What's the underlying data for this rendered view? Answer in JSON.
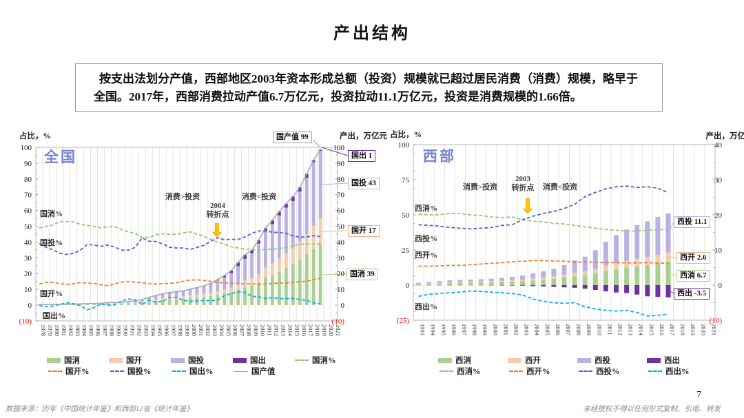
{
  "page": {
    "title": "产出结构",
    "page_number": "7",
    "footer_left": "数据来源：历年《中国统计年鉴》和西部12省《统计年鉴》",
    "footer_right": "未经授权不得以任何形式复制、引用、转发"
  },
  "summary_box": {
    "text": "按支出法划分产值，西部地区2003年资本形成总额（投资）规模就已超过居民消费（消费）规模，略早于全国。2017年，西部消费拉动产值6.7万亿元，投资拉动11.1万亿元，投资是消费规模的1.66倍。"
  },
  "colors": {
    "bar_consumption": "#a9d08e",
    "bar_government": "#f8cbad",
    "bar_investment": "#b9b0e4",
    "bar_net_export": "#7030a0",
    "line_consumption_pct": "#8ec96a",
    "line_government_pct": "#ed7d31",
    "line_investment_pct": "#5a62c9",
    "line_net_export_pct": "#00b0f0",
    "line_total": "#a6a6a6",
    "negative_tick_red": "#ff0000",
    "turning_arrow_yellow": "#ffc000",
    "chart_title_blue": "#7381d9"
  },
  "chart_data": [
    {
      "type": "bar+line combo (stacked bars = output in trillion yuan, dashed lines = share of output %)",
      "title": "全国",
      "left_axis": {
        "label": "占比，%",
        "ticks": [
          "100",
          "90",
          "80",
          "70",
          "60",
          "50",
          "40",
          "30",
          "20",
          "10",
          "0",
          "(10)"
        ],
        "tick_values": [
          100,
          90,
          80,
          70,
          60,
          50,
          40,
          30,
          20,
          10,
          0,
          -10
        ],
        "min": -10,
        "max": 100
      },
      "right_axis": {
        "label": "产出，万亿元",
        "ticks": [
          "100",
          "90",
          "80",
          "70",
          "60",
          "50",
          "40",
          "30",
          "20",
          "10",
          "0",
          "(10)"
        ],
        "tick_values": [
          100,
          90,
          80,
          70,
          60,
          50,
          40,
          30,
          20,
          10,
          0,
          -10
        ],
        "min": -10,
        "max": 100
      },
      "years": [
        1978,
        1979,
        1980,
        1981,
        1982,
        1983,
        1984,
        1985,
        1986,
        1987,
        1988,
        1989,
        1990,
        1991,
        1992,
        1993,
        1994,
        1995,
        1996,
        1997,
        1998,
        1999,
        2000,
        2001,
        2002,
        2003,
        2004,
        2005,
        2006,
        2007,
        2008,
        2009,
        2010,
        2011,
        2012,
        2013,
        2014,
        2015,
        2016,
        2017,
        2018,
        2019,
        2020,
        2021
      ],
      "line_labels": [
        "国消%",
        "国投%",
        "国开%",
        "国出%"
      ],
      "annotations": {
        "left_region": "消费>投资",
        "turning_point_year": "2004",
        "turning_point_label": "转折点",
        "right_region": "消费<投资"
      },
      "callouts": [
        "国产值 99",
        "国出 1",
        "国投 43",
        "国开 17",
        "国消 39"
      ],
      "bar_note": "bar segment (万亿元) = total_line value × share% / 100; data 1978–2019",
      "series": {
        "bars": [
          {
            "name": "国消",
            "color": "#a9d08e"
          },
          {
            "name": "国开",
            "color": "#f8cbad"
          },
          {
            "name": "国投",
            "color": "#b9b0e4"
          },
          {
            "name": "国出",
            "color": "#7030a0"
          }
        ],
        "share_lines": [
          {
            "name": "国消%",
            "color": "#8ec96a",
            "values": [
              48.8,
              49.9,
              50.8,
              53.0,
              52.9,
              52.7,
              51.2,
              50.6,
              49.8,
              49.0,
              49.6,
              49.7,
              47.9,
              46.4,
              45.4,
              42.9,
              42.9,
              44.5,
              45.3,
              44.9,
              44.8,
              45.7,
              46.4,
              44.9,
              43.7,
              41.7,
              39.8,
              38.5,
              37.0,
              36.2,
              35.4,
              35.5,
              34.6,
              35.3,
              35.4,
              35.9,
              36.5,
              37.5,
              38.6,
              38.7,
              38.5,
              38.9
            ]
          },
          {
            "name": "国开%",
            "color": "#ed7d31",
            "values": [
              13.3,
              14.4,
              14.5,
              13.6,
              13.2,
              13.6,
              14.3,
              13.9,
              13.7,
              12.9,
              12.3,
              13.4,
              14.6,
              15.0,
              14.6,
              14.2,
              13.5,
              13.3,
              13.5,
              13.7,
              14.2,
              15.1,
              15.9,
              16.0,
              15.6,
              15.1,
              14.3,
              14.1,
              13.9,
              13.7,
              13.4,
              13.5,
              13.1,
              13.5,
              13.7,
              13.9,
              14.0,
              14.3,
              14.8,
              15.1,
              16.1,
              16.9
            ]
          },
          {
            "name": "国投%",
            "color": "#5a62c9",
            "values": [
              38.9,
              36.6,
              35.0,
              32.9,
              32.1,
              32.8,
              34.9,
              38.5,
              38.0,
              37.3,
              38.1,
              36.8,
              34.9,
              34.8,
              36.6,
              42.6,
              40.5,
              40.3,
              38.8,
              36.7,
              36.2,
              36.2,
              35.3,
              36.5,
              37.8,
              40.4,
              42.7,
              41.5,
              41.7,
              41.6,
              43.2,
              45.5,
              47.0,
              47.0,
              46.2,
              46.0,
              45.5,
              43.9,
              43.1,
              43.2,
              44.0,
              43.4
            ]
          },
          {
            "name": "国出%",
            "color": "#00b0f0",
            "values": [
              -0.3,
              -1.0,
              -0.6,
              0.4,
              1.5,
              0.9,
              -0.4,
              -3.0,
              -1.5,
              0.8,
              -0.1,
              0.1,
              2.6,
              3.8,
              3.4,
              0.3,
              3.1,
              1.9,
              2.4,
              4.7,
              4.8,
              3.0,
              2.4,
              2.6,
              2.9,
              2.8,
              3.2,
              5.9,
              7.4,
              8.5,
              8.0,
              5.5,
              5.3,
              4.2,
              4.7,
              4.2,
              4.0,
              4.3,
              3.5,
              3.0,
              1.4,
              0.8
            ]
          }
        ],
        "total_line": {
          "name": "国产值",
          "color": "#a6a6a6",
          "unit": "万亿元",
          "values": [
            0.37,
            0.41,
            0.46,
            0.49,
            0.54,
            0.6,
            0.73,
            0.91,
            1.04,
            1.22,
            1.52,
            1.72,
            1.89,
            2.2,
            2.72,
            3.57,
            4.86,
            6.13,
            7.18,
            7.97,
            8.52,
            9.06,
            10.03,
            11.09,
            12.17,
            13.74,
            16.18,
            18.73,
            21.94,
            27.01,
            31.92,
            34.85,
            41.21,
            48.79,
            53.86,
            59.3,
            64.36,
            68.89,
            74.64,
            83.2,
            91.93,
            98.65
          ]
        }
      },
      "legend": [
        {
          "label": "国消",
          "swatch": "bar",
          "color": "#a9d08e"
        },
        {
          "label": "国开",
          "swatch": "bar",
          "color": "#f8cbad"
        },
        {
          "label": "国投",
          "swatch": "bar",
          "color": "#b9b0e4"
        },
        {
          "label": "国出",
          "swatch": "bar",
          "color": "#7030a0"
        },
        {
          "label": "国消%",
          "swatch": "dash",
          "color": "#8ec96a"
        },
        {
          "label": "国开%",
          "swatch": "dash",
          "color": "#ed7d31"
        },
        {
          "label": "国投%",
          "swatch": "dash",
          "color": "#5a62c9"
        },
        {
          "label": "国出%",
          "swatch": "dash",
          "color": "#00b0f0"
        },
        {
          "label": "国产值",
          "swatch": "solid",
          "color": "#a6a6a6"
        }
      ]
    },
    {
      "type": "bar+line combo (stacked bars = output in trillion yuan, dashed lines = share of output %)",
      "title": "西部",
      "left_axis": {
        "label": "占比，%",
        "ticks": [
          "100",
          "75",
          "50",
          "25",
          "0",
          "(25)"
        ],
        "tick_values": [
          100,
          75,
          50,
          25,
          0,
          -25
        ],
        "min": -25,
        "max": 100
      },
      "right_axis": {
        "label": "产出，万亿",
        "ticks": [
          "40",
          "30",
          "20",
          "10",
          "0",
          "(10)"
        ],
        "tick_values": [
          40,
          30,
          20,
          10,
          0,
          -10
        ],
        "min": -10,
        "max": 40
      },
      "years": [
        1993,
        1994,
        1995,
        1996,
        1997,
        1998,
        1999,
        2000,
        2001,
        2002,
        2003,
        2004,
        2005,
        2006,
        2007,
        2008,
        2009,
        2010,
        2011,
        2012,
        2013,
        2014,
        2015,
        2016,
        2017,
        2018,
        2019,
        2020,
        2021
      ],
      "line_labels": [
        "西消%",
        "西投%",
        "西开%",
        "西出%"
      ],
      "annotations": {
        "left_region": "消费>投资",
        "turning_point_year": "2003",
        "turning_point_label": "转折点",
        "right_region": "消费<投资"
      },
      "callouts": [
        "西投 11.1",
        "西开 2.6",
        "西消 6.7",
        "西出 -3.5"
      ],
      "bar_note": "bar segment (万亿元) = totals_trillion value × share% / 100; data 1993–2017; no total line drawn",
      "series": {
        "bars": [
          {
            "name": "西消",
            "color": "#a9d08e"
          },
          {
            "name": "西开",
            "color": "#f8cbad"
          },
          {
            "name": "西投",
            "color": "#b9b0e4"
          },
          {
            "name": "西出",
            "color": "#7030a0"
          }
        ],
        "share_lines": [
          {
            "name": "西消%",
            "color": "#8ec96a",
            "values": [
              50.5,
              50.0,
              50.0,
              51.0,
              51.0,
              50.0,
              49.5,
              48.5,
              48.0,
              48.5,
              46.5,
              45.5,
              45.0,
              44.0,
              43.5,
              42.5,
              41.5,
              40.5,
              39.5,
              39.0,
              38.5,
              38.5,
              39.0,
              39.5,
              39.6
            ]
          },
          {
            "name": "西开%",
            "color": "#ed7d31",
            "values": [
              13.5,
              13.5,
              13.7,
              14.0,
              14.0,
              14.5,
              15.0,
              15.5,
              16.0,
              16.5,
              17.0,
              17.5,
              17.5,
              17.2,
              17.0,
              16.3,
              16.5,
              16.3,
              16.0,
              16.0,
              15.8,
              15.8,
              16.0,
              15.7,
              15.4
            ]
          },
          {
            "name": "西投%",
            "color": "#5a62c9",
            "values": [
              43.0,
              42.5,
              42.0,
              41.0,
              40.5,
              40.0,
              40.5,
              41.0,
              42.5,
              43.0,
              46.5,
              49.0,
              51.0,
              52.5,
              54.5,
              57.5,
              63.0,
              66.0,
              68.5,
              70.0,
              70.5,
              69.5,
              70.0,
              69.0,
              65.7
            ]
          },
          {
            "name": "西出%",
            "color": "#00b0f0",
            "values": [
              -8.0,
              -6.5,
              -6.0,
              -5.5,
              -5.0,
              -4.2,
              -4.5,
              -5.0,
              -5.5,
              -6.0,
              -7.0,
              -10.0,
              -11.5,
              -12.5,
              -13.0,
              -12.5,
              -15.5,
              -17.0,
              -18.0,
              -18.5,
              -18.0,
              -19.5,
              -22.0,
              -21.5,
              -20.7
            ]
          }
        ],
        "totals_trillion": {
          "unit": "万亿元",
          "values": [
            0.66,
            0.88,
            1.08,
            1.26,
            1.4,
            1.5,
            1.6,
            1.74,
            1.93,
            2.15,
            2.47,
            2.97,
            3.43,
            4.06,
            4.95,
            6.04,
            6.69,
            8.1,
            9.97,
            11.4,
            12.67,
            13.8,
            14.52,
            15.65,
            16.9
          ]
        }
      },
      "legend": [
        {
          "label": "西消",
          "swatch": "bar",
          "color": "#a9d08e"
        },
        {
          "label": "西开",
          "swatch": "bar",
          "color": "#f8cbad"
        },
        {
          "label": "西投",
          "swatch": "bar",
          "color": "#b9b0e4"
        },
        {
          "label": "西出",
          "swatch": "bar",
          "color": "#7030a0"
        },
        {
          "label": "西消%",
          "swatch": "dash",
          "color": "#8ec96a"
        },
        {
          "label": "西开%",
          "swatch": "dash",
          "color": "#ed7d31"
        },
        {
          "label": "西投%",
          "swatch": "dash",
          "color": "#5a62c9"
        },
        {
          "label": "西出%",
          "swatch": "dash",
          "color": "#00b0f0"
        }
      ]
    }
  ]
}
